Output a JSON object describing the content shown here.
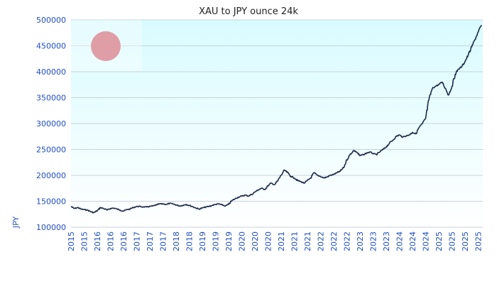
{
  "chart_data": {
    "type": "line",
    "title": "XAU to JPY ounce 24k",
    "xlabel": "",
    "ylabel": "JPY",
    "ylim": [
      100000,
      500000
    ],
    "yticks": [
      100000,
      150000,
      200000,
      250000,
      300000,
      350000,
      400000,
      450000,
      500000
    ],
    "xlim": [
      2015.0,
      2025.45
    ],
    "xtick_positions": [
      2015.0,
      2015.33,
      2015.67,
      2016.0,
      2016.33,
      2016.67,
      2017.0,
      2017.33,
      2017.67,
      2018.0,
      2018.33,
      2018.67,
      2019.0,
      2019.33,
      2019.67,
      2020.0,
      2020.33,
      2020.67,
      2021.0,
      2021.33,
      2021.67,
      2022.0,
      2022.33,
      2022.67,
      2023.0,
      2023.33,
      2023.67,
      2024.0,
      2024.33,
      2024.67,
      2025.0,
      2025.33
    ],
    "xtick_labels": [
      "2015",
      "2015",
      "2016",
      "2016",
      "2016",
      "2017",
      "2017",
      "2017",
      "2018",
      "2018",
      "2019",
      "2019",
      "2019",
      "2020",
      "2020",
      "2020",
      "2021",
      "2021",
      "2021",
      "2022",
      "2022",
      "2022",
      "2023",
      "2023",
      "2023",
      "2024",
      "2024",
      "2024",
      "2025",
      "2025",
      "2025",
      "2025"
    ],
    "grid": true,
    "series": [
      {
        "color": "#1a2a4a",
        "x": [
          2015.0,
          2015.08,
          2015.17,
          2015.25,
          2015.33,
          2015.42,
          2015.5,
          2015.58,
          2015.67,
          2015.75,
          2015.83,
          2015.92,
          2016.0,
          2016.08,
          2016.17,
          2016.25,
          2016.33,
          2016.42,
          2016.5,
          2016.58,
          2016.67,
          2016.75,
          2016.83,
          2016.92,
          2017.0,
          2017.08,
          2017.17,
          2017.25,
          2017.33,
          2017.42,
          2017.5,
          2017.58,
          2017.67,
          2017.75,
          2017.83,
          2017.92,
          2018.0,
          2018.08,
          2018.17,
          2018.25,
          2018.33,
          2018.42,
          2018.5,
          2018.58,
          2018.67,
          2018.75,
          2018.83,
          2018.92,
          2019.0,
          2019.08,
          2019.17,
          2019.25,
          2019.33,
          2019.42,
          2019.5,
          2019.58,
          2019.67,
          2019.75,
          2019.83,
          2019.92,
          2020.0,
          2020.08,
          2020.17,
          2020.25,
          2020.33,
          2020.42,
          2020.5,
          2020.58,
          2020.67,
          2020.75,
          2020.83,
          2020.92,
          2021.0,
          2021.08,
          2021.17,
          2021.25,
          2021.33,
          2021.42,
          2021.5,
          2021.58,
          2021.67,
          2021.75,
          2021.83,
          2021.92,
          2022.0,
          2022.08,
          2022.17,
          2022.25,
          2022.33,
          2022.42,
          2022.5,
          2022.58,
          2022.67,
          2022.75,
          2022.83,
          2022.92,
          2023.0,
          2023.08,
          2023.17,
          2023.25,
          2023.33,
          2023.42,
          2023.5,
          2023.58,
          2023.67,
          2023.75,
          2023.83,
          2023.92,
          2024.0,
          2024.08,
          2024.17,
          2024.25,
          2024.33,
          2024.42,
          2024.5,
          2024.58,
          2024.67,
          2024.75,
          2024.83,
          2024.92,
          2025.0,
          2025.08,
          2025.17,
          2025.25,
          2025.33,
          2025.42
        ],
        "y": [
          140000,
          136000,
          138000,
          135000,
          134000,
          133000,
          130000,
          128000,
          132000,
          138000,
          136000,
          133000,
          136000,
          137000,
          135000,
          133000,
          131000,
          134000,
          135000,
          138000,
          140000,
          140000,
          139000,
          139000,
          140000,
          141000,
          143000,
          145000,
          145000,
          144000,
          146000,
          145000,
          143000,
          141000,
          142000,
          144000,
          142000,
          140000,
          137000,
          135000,
          137000,
          139000,
          140000,
          142000,
          144000,
          145000,
          143000,
          141000,
          144000,
          151000,
          155000,
          158000,
          160000,
          162000,
          160000,
          163000,
          168000,
          172000,
          175000,
          173000,
          180000,
          185000,
          182000,
          190000,
          200000,
          210000,
          205000,
          198000,
          195000,
          190000,
          188000,
          185000,
          190000,
          195000,
          205000,
          200000,
          198000,
          195000,
          197000,
          200000,
          202000,
          205000,
          208000,
          215000,
          230000,
          240000,
          248000,
          245000,
          238000,
          240000,
          243000,
          245000,
          242000,
          240000,
          245000,
          250000,
          255000,
          262000,
          268000,
          275000,
          278000,
          274000,
          276000,
          278000,
          283000,
          280000,
          292000,
          300000,
          310000,
          345000,
          368000,
          372000,
          375000,
          380000,
          368000,
          355000,
          372000,
          395000,
          405000,
          410000,
          420000,
          432000,
          448000,
          462000,
          476000,
          490000
        ]
      }
    ]
  }
}
